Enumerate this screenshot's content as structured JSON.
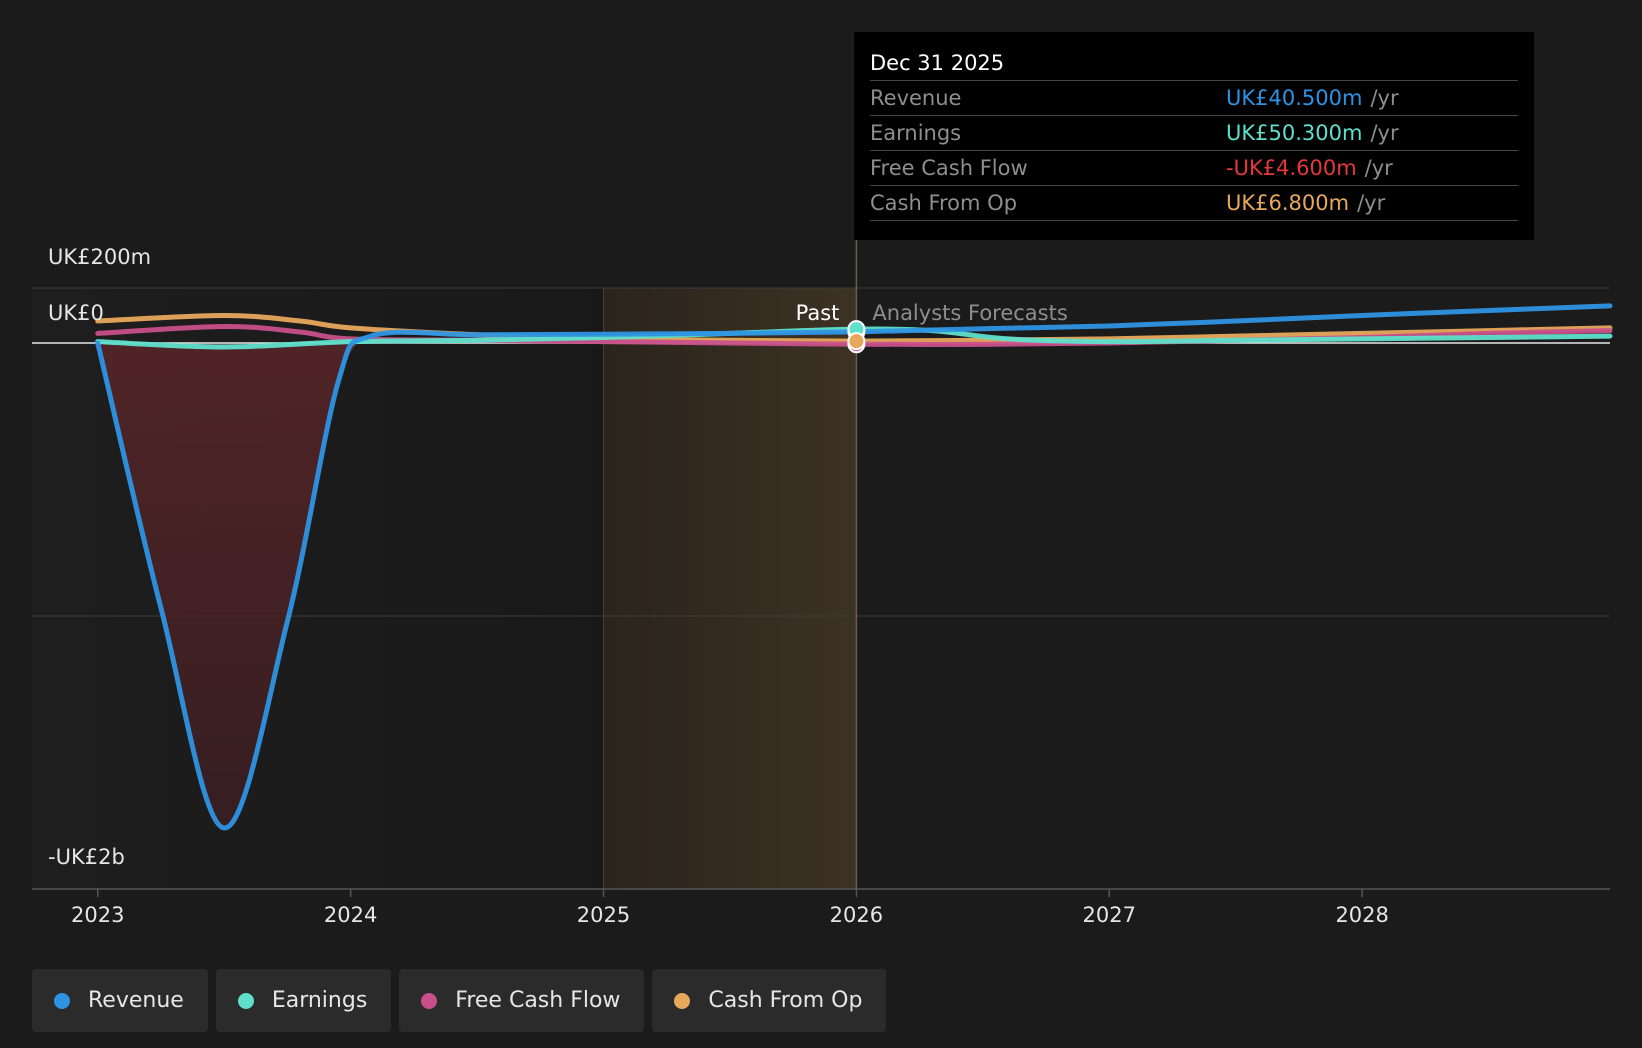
{
  "chart_data": {
    "type": "area",
    "x_tick_labels": [
      "2023",
      "2024",
      "2025",
      "2026",
      "2027",
      "2028"
    ],
    "y_tick_labels": [
      "UK£200m",
      "UK£0",
      "-UK£2b"
    ],
    "past_label": "Past",
    "forecast_label": "Analysts Forecasts",
    "xlim": [
      2022.74,
      2028.98
    ],
    "ylim": [
      -2000,
      200
    ],
    "series": [
      {
        "name": "Revenue",
        "color": "#2e93e3",
        "points": [
          [
            2023.0,
            0
          ],
          [
            2023.25,
            -1000
          ],
          [
            2023.5,
            -1830
          ],
          [
            2023.75,
            -1050
          ],
          [
            2023.95,
            -150
          ],
          [
            2024.08,
            25
          ],
          [
            2024.5,
            30
          ],
          [
            2025.0,
            32
          ],
          [
            2025.5,
            35
          ],
          [
            2026.0,
            40.5
          ],
          [
            2026.5,
            52
          ],
          [
            2027.0,
            62
          ],
          [
            2027.5,
            80
          ],
          [
            2028.0,
            100
          ],
          [
            2028.5,
            118
          ],
          [
            2028.98,
            135
          ]
        ]
      },
      {
        "name": "Earnings",
        "color": "#5ee0cb",
        "points": [
          [
            2023.0,
            5
          ],
          [
            2023.5,
            -15
          ],
          [
            2024.0,
            5
          ],
          [
            2024.5,
            10
          ],
          [
            2025.0,
            20
          ],
          [
            2025.5,
            35
          ],
          [
            2026.0,
            50.3
          ],
          [
            2026.3,
            45
          ],
          [
            2026.6,
            15
          ],
          [
            2027.0,
            5
          ],
          [
            2027.5,
            10
          ],
          [
            2028.0,
            15
          ],
          [
            2028.98,
            25
          ]
        ]
      },
      {
        "name": "Free Cash Flow",
        "color": "#c8508a",
        "points": [
          [
            2023.0,
            35
          ],
          [
            2023.5,
            60
          ],
          [
            2023.8,
            40
          ],
          [
            2024.0,
            15
          ],
          [
            2024.5,
            10
          ],
          [
            2025.0,
            5
          ],
          [
            2025.5,
            0
          ],
          [
            2026.0,
            -4.6
          ],
          [
            2026.5,
            -5
          ],
          [
            2027.0,
            0
          ],
          [
            2027.5,
            10
          ],
          [
            2028.0,
            20
          ],
          [
            2028.5,
            35
          ],
          [
            2028.98,
            45
          ]
        ]
      },
      {
        "name": "Cash From Op",
        "color": "#e8a85c",
        "points": [
          [
            2023.0,
            80
          ],
          [
            2023.5,
            100
          ],
          [
            2023.8,
            80
          ],
          [
            2024.0,
            55
          ],
          [
            2024.5,
            30
          ],
          [
            2025.0,
            15
          ],
          [
            2025.5,
            10
          ],
          [
            2026.0,
            6.8
          ],
          [
            2026.5,
            10
          ],
          [
            2027.0,
            15
          ],
          [
            2027.5,
            25
          ],
          [
            2028.0,
            35
          ],
          [
            2028.5,
            45
          ],
          [
            2028.98,
            55
          ]
        ]
      }
    ],
    "marker_x": 2026.0,
    "past_region": [
      2022.74,
      2026.0
    ],
    "highlight_region": [
      2025.0,
      2026.0
    ],
    "grid": true
  },
  "tooltip": {
    "date": "Dec 31 2025",
    "rows": [
      {
        "label": "Revenue",
        "value": "UK£40.500m",
        "unit": "/yr",
        "color": "#2e93e3"
      },
      {
        "label": "Earnings",
        "value": "UK£50.300m",
        "unit": "/yr",
        "color": "#5ee0cb"
      },
      {
        "label": "Free Cash Flow",
        "value": "-UK£4.600m",
        "unit": "/yr",
        "color": "#e5383b"
      },
      {
        "label": "Cash From Op",
        "value": "UK£6.800m",
        "unit": "/yr",
        "color": "#e8a85c"
      }
    ]
  },
  "legend": [
    {
      "label": "Revenue",
      "color": "#2e93e3"
    },
    {
      "label": "Earnings",
      "color": "#5ee0cb"
    },
    {
      "label": "Free Cash Flow",
      "color": "#c8508a"
    },
    {
      "label": "Cash From Op",
      "color": "#e8a85c"
    }
  ]
}
